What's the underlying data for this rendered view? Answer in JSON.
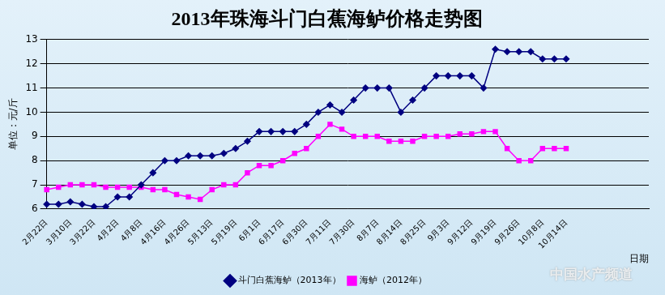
{
  "chart_data": {
    "type": "line",
    "title": "2013年珠海斗门白蕉海鲈价格走势图",
    "x_label": "日期",
    "y_label": "单位：元/斤",
    "annotations": [
      "中国水产频道"
    ],
    "categories": [
      "2月22日",
      null,
      "3月10日",
      null,
      "3月22日",
      null,
      "4月2日",
      null,
      "4月8日",
      null,
      "4月16日",
      null,
      "4月26日",
      null,
      "5月13日",
      null,
      "5月19日",
      null,
      "6月1日",
      null,
      "6月17日",
      null,
      "6月30日",
      null,
      "7月11日",
      null,
      "7月30日",
      null,
      "8月7日",
      null,
      "8月14日",
      null,
      "8月25日",
      null,
      "9月3日",
      null,
      "9月12日",
      null,
      "9月19日",
      null,
      "9月26日",
      null,
      "10月8日",
      null,
      "10月14日",
      null,
      null,
      null,
      null,
      null,
      null,
      null
    ],
    "series": [
      {
        "name": "斗门白蕉海鲈（2013年）",
        "color": "#000080",
        "marker": "diamond",
        "line_style": "solid",
        "values": [
          6.2,
          6.2,
          6.3,
          6.2,
          6.1,
          6.1,
          6.5,
          6.5,
          7.0,
          7.5,
          8.0,
          8.0,
          8.2,
          8.2,
          8.2,
          8.3,
          8.5,
          8.8,
          9.2,
          9.2,
          9.2,
          9.2,
          9.5,
          10.0,
          10.3,
          10.0,
          10.5,
          11.0,
          11.0,
          11.0,
          10.0,
          10.5,
          11.0,
          11.5,
          11.5,
          11.5,
          11.5,
          11.0,
          12.6,
          12.5,
          12.5,
          12.5,
          12.2,
          12.2,
          12.2,
          null,
          null,
          null,
          null,
          null,
          null,
          null
        ]
      },
      {
        "name": "海鲈（2012年）",
        "color": "#ff00ff",
        "marker": "square",
        "line_style": "solid",
        "values": [
          6.8,
          6.9,
          7.0,
          7.0,
          7.0,
          6.9,
          6.9,
          6.9,
          6.9,
          6.8,
          6.8,
          6.6,
          6.5,
          6.4,
          6.8,
          7.0,
          7.0,
          7.5,
          7.8,
          7.8,
          8.0,
          8.3,
          8.5,
          9.0,
          9.5,
          9.3,
          9.0,
          9.0,
          9.0,
          8.8,
          8.8,
          8.8,
          9.0,
          9.0,
          9.0,
          9.1,
          9.1,
          9.2,
          9.2,
          8.5,
          8.0,
          8.0,
          8.5,
          8.5,
          8.5,
          null,
          null,
          null,
          null,
          null,
          null,
          null
        ]
      }
    ],
    "ylim": [
      6,
      13
    ],
    "yticks": [
      6,
      7,
      8,
      9,
      10,
      11,
      12,
      13
    ],
    "grid": true,
    "legend": "bottom"
  }
}
